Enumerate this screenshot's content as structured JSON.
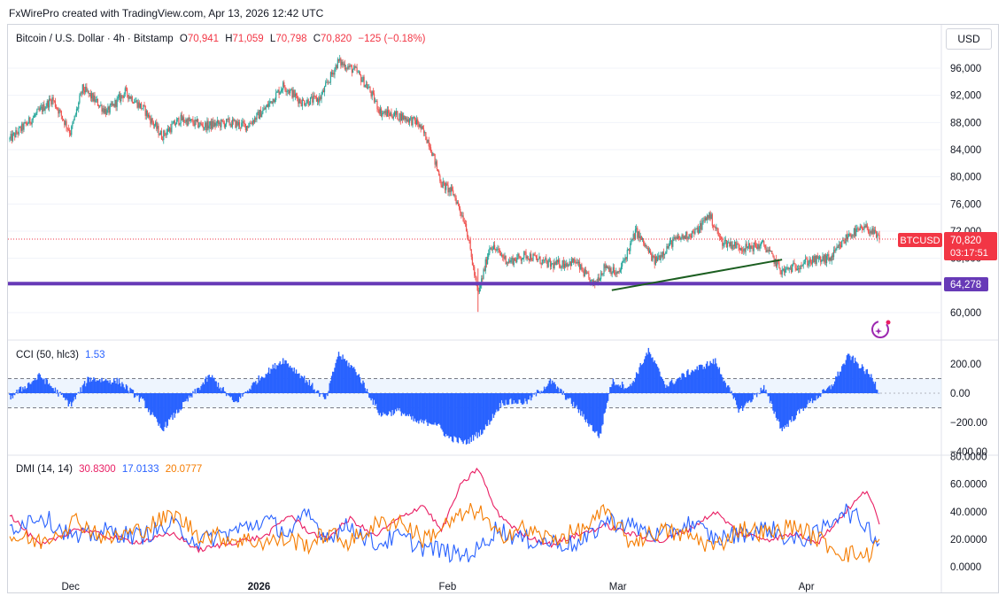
{
  "header": {
    "credit": "FxWirePro created with TradingView.com, Apr 13, 2026 12:42 UTC"
  },
  "currency_button": "USD",
  "legend": {
    "symbol": "Bitcoin / U.S. Dollar · 4h · Bitstamp",
    "o_label": "O",
    "o_value": "70,941",
    "h_label": "H",
    "h_value": "71,059",
    "l_label": "L",
    "l_value": "70,798",
    "c_label": "C",
    "c_value": "70,820",
    "change": "−125 (−0.18%)"
  },
  "price_tags": {
    "symbol_tag": "BTCUSD",
    "last_price": "70,820",
    "countdown": "03:17:51",
    "level_line": "64,278"
  },
  "cci_legend": {
    "name": "CCI (50, hlc3)",
    "value": "1.53"
  },
  "dmi_legend": {
    "name": "DMI (14, 14)",
    "adx": "30.8300",
    "plus_di": "17.0133",
    "minus_di": "20.0777"
  },
  "colors": {
    "up": "#26a69a",
    "down": "#ef5350",
    "level": "#673ab7",
    "trend": "#1b5e20",
    "cci": "#2962ff",
    "adx": "#e91e63",
    "plus_di": "#2962ff",
    "minus_di": "#f57c00",
    "price_tag": "#f23645"
  },
  "chart_data": [
    {
      "type": "candlestick",
      "title": "Bitcoin / U.S. Dollar · 4h · Bitstamp",
      "x_ticks": [
        "Dec",
        "2026",
        "Feb",
        "Mar",
        "Apr"
      ],
      "y_ticks": [
        "96,000",
        "92,000",
        "88,000",
        "84,000",
        "80,000",
        "76,000",
        "72,000",
        "68,000",
        "64,000",
        "60,000"
      ],
      "ylim": [
        58000,
        98000
      ],
      "anchors": [
        {
          "x": "Nov 21",
          "y": 85500
        },
        {
          "x": "Nov 24",
          "y": 88000
        },
        {
          "x": "Nov 28",
          "y": 91500
        },
        {
          "x": "Dec 1",
          "y": 86500
        },
        {
          "x": "Dec 3",
          "y": 93000
        },
        {
          "x": "Dec 7",
          "y": 89500
        },
        {
          "x": "Dec 10",
          "y": 92500
        },
        {
          "x": "Dec 13",
          "y": 90000
        },
        {
          "x": "Dec 16",
          "y": 86000
        },
        {
          "x": "Dec 19",
          "y": 88500
        },
        {
          "x": "Dec 23",
          "y": 87500
        },
        {
          "x": "Dec 27",
          "y": 88000
        },
        {
          "x": "Dec 30",
          "y": 87500
        },
        {
          "x": "Jan 2",
          "y": 90000
        },
        {
          "x": "Jan 5",
          "y": 93500
        },
        {
          "x": "Jan 8",
          "y": 91000
        },
        {
          "x": "Jan 11",
          "y": 91500
        },
        {
          "x": "Jan 14",
          "y": 97000
        },
        {
          "x": "Jan 17",
          "y": 95500
        },
        {
          "x": "Jan 19",
          "y": 93000
        },
        {
          "x": "Jan 21",
          "y": 89500
        },
        {
          "x": "Jan 24",
          "y": 89000
        },
        {
          "x": "Jan 27",
          "y": 88000
        },
        {
          "x": "Jan 29",
          "y": 85000
        },
        {
          "x": "Jan 31",
          "y": 79000
        },
        {
          "x": "Feb 2",
          "y": 77500
        },
        {
          "x": "Feb 4",
          "y": 73000
        },
        {
          "x": "Feb 6",
          "y": 62500
        },
        {
          "x": "Feb 8",
          "y": 70000
        },
        {
          "x": "Feb 11",
          "y": 67500
        },
        {
          "x": "Feb 14",
          "y": 68500
        },
        {
          "x": "Feb 18",
          "y": 67000
        },
        {
          "x": "Feb 22",
          "y": 67500
        },
        {
          "x": "Feb 25",
          "y": 64000
        },
        {
          "x": "Feb 27",
          "y": 67000
        },
        {
          "x": "Mar 1",
          "y": 65500
        },
        {
          "x": "Mar 4",
          "y": 72000
        },
        {
          "x": "Mar 7",
          "y": 67500
        },
        {
          "x": "Mar 10",
          "y": 70500
        },
        {
          "x": "Mar 14",
          "y": 72000
        },
        {
          "x": "Mar 16",
          "y": 74500
        },
        {
          "x": "Mar 18",
          "y": 70500
        },
        {
          "x": "Mar 22",
          "y": 69500
        },
        {
          "x": "Mar 25",
          "y": 70000
        },
        {
          "x": "Mar 28",
          "y": 66000
        },
        {
          "x": "Apr 1",
          "y": 67500
        },
        {
          "x": "Apr 5",
          "y": 68000
        },
        {
          "x": "Apr 8",
          "y": 71500
        },
        {
          "x": "Apr 11",
          "y": 72500
        },
        {
          "x": "Apr 13",
          "y": 70820
        }
      ],
      "last_price": 70820,
      "horizontal_level": 64278,
      "trendline": [
        {
          "x": "Feb 28",
          "y": 63300
        },
        {
          "x": "Mar 28",
          "y": 67800
        }
      ]
    },
    {
      "type": "histogram",
      "title": "CCI (50, hlc3)",
      "y_ticks": [
        "200.00",
        "0.00",
        "−200.00",
        "−400.00"
      ],
      "ylim": [
        -420,
        260
      ],
      "bands": [
        100,
        -100
      ],
      "anchors": [
        {
          "x": "Nov 21",
          "y": -30
        },
        {
          "x": "Nov 26",
          "y": 120
        },
        {
          "x": "Dec 1",
          "y": -80
        },
        {
          "x": "Dec 4",
          "y": 100
        },
        {
          "x": "Dec 9",
          "y": 80
        },
        {
          "x": "Dec 13",
          "y": -60
        },
        {
          "x": "Dec 16",
          "y": -250
        },
        {
          "x": "Dec 20",
          "y": -60
        },
        {
          "x": "Dec 24",
          "y": 120
        },
        {
          "x": "Dec 28",
          "y": -70
        },
        {
          "x": "Jan 1",
          "y": 100
        },
        {
          "x": "Jan 5",
          "y": 230
        },
        {
          "x": "Jan 9",
          "y": 80
        },
        {
          "x": "Jan 12",
          "y": -50
        },
        {
          "x": "Jan 14",
          "y": 270
        },
        {
          "x": "Jan 17",
          "y": 150
        },
        {
          "x": "Jan 21",
          "y": -150
        },
        {
          "x": "Jan 24",
          "y": -120
        },
        {
          "x": "Jan 27",
          "y": -200
        },
        {
          "x": "Jan 30",
          "y": -200
        },
        {
          "x": "Feb 1",
          "y": -300
        },
        {
          "x": "Feb 4",
          "y": -340
        },
        {
          "x": "Feb 7",
          "y": -250
        },
        {
          "x": "Feb 10",
          "y": -60
        },
        {
          "x": "Feb 14",
          "y": -60
        },
        {
          "x": "Feb 18",
          "y": 80
        },
        {
          "x": "Feb 22",
          "y": -90
        },
        {
          "x": "Feb 26",
          "y": -300
        },
        {
          "x": "Feb 28",
          "y": 80
        },
        {
          "x": "Mar 3",
          "y": 40
        },
        {
          "x": "Mar 6",
          "y": 290
        },
        {
          "x": "Mar 9",
          "y": 50
        },
        {
          "x": "Mar 13",
          "y": 150
        },
        {
          "x": "Mar 17",
          "y": 220
        },
        {
          "x": "Mar 21",
          "y": -120
        },
        {
          "x": "Mar 25",
          "y": 40
        },
        {
          "x": "Mar 28",
          "y": -250
        },
        {
          "x": "Apr 1",
          "y": -80
        },
        {
          "x": "Apr 5",
          "y": 40
        },
        {
          "x": "Apr 8",
          "y": 260
        },
        {
          "x": "Apr 12",
          "y": 100
        },
        {
          "x": "Apr 13",
          "y": 1.53
        }
      ]
    },
    {
      "type": "line",
      "title": "DMI (14, 14)",
      "y_ticks": [
        "80.0000",
        "60.0000",
        "40.0000",
        "20.0000",
        "0.0000"
      ],
      "ylim": [
        0,
        82
      ],
      "series": [
        {
          "name": "ADX",
          "points": [
            {
              "x": "Nov 21",
              "y": 38
            },
            {
              "x": "Nov 26",
              "y": 15
            },
            {
              "x": "Dec 2",
              "y": 28
            },
            {
              "x": "Dec 7",
              "y": 22
            },
            {
              "x": "Dec 12",
              "y": 18
            },
            {
              "x": "Dec 18",
              "y": 24
            },
            {
              "x": "Dec 22",
              "y": 12
            },
            {
              "x": "Dec 28",
              "y": 18
            },
            {
              "x": "Jan 2",
              "y": 22
            },
            {
              "x": "Jan 6",
              "y": 38
            },
            {
              "x": "Jan 9",
              "y": 26
            },
            {
              "x": "Jan 12",
              "y": 20
            },
            {
              "x": "Jan 16",
              "y": 35
            },
            {
              "x": "Jan 20",
              "y": 22
            },
            {
              "x": "Jan 24",
              "y": 35
            },
            {
              "x": "Jan 28",
              "y": 45
            },
            {
              "x": "Jan 31",
              "y": 26
            },
            {
              "x": "Feb 3",
              "y": 58
            },
            {
              "x": "Feb 6",
              "y": 72
            },
            {
              "x": "Feb 9",
              "y": 40
            },
            {
              "x": "Feb 13",
              "y": 24
            },
            {
              "x": "Feb 18",
              "y": 16
            },
            {
              "x": "Feb 23",
              "y": 24
            },
            {
              "x": "Feb 27",
              "y": 30
            },
            {
              "x": "Mar 3",
              "y": 24
            },
            {
              "x": "Mar 8",
              "y": 18
            },
            {
              "x": "Mar 13",
              "y": 28
            },
            {
              "x": "Mar 17",
              "y": 40
            },
            {
              "x": "Mar 21",
              "y": 24
            },
            {
              "x": "Mar 26",
              "y": 20
            },
            {
              "x": "Mar 30",
              "y": 24
            },
            {
              "x": "Apr 3",
              "y": 18
            },
            {
              "x": "Apr 7",
              "y": 38
            },
            {
              "x": "Apr 11",
              "y": 56
            },
            {
              "x": "Apr 13",
              "y": 30.83
            }
          ]
        },
        {
          "name": "+DI",
          "points": [
            {
              "x": "Nov 21",
              "y": 28
            },
            {
              "x": "Nov 26",
              "y": 38
            },
            {
              "x": "Dec 2",
              "y": 20
            },
            {
              "x": "Dec 7",
              "y": 26
            },
            {
              "x": "Dec 12",
              "y": 22
            },
            {
              "x": "Dec 18",
              "y": 30
            },
            {
              "x": "Dec 22",
              "y": 18
            },
            {
              "x": "Dec 28",
              "y": 26
            },
            {
              "x": "Jan 2",
              "y": 34
            },
            {
              "x": "Jan 6",
              "y": 24
            },
            {
              "x": "Jan 9",
              "y": 38
            },
            {
              "x": "Jan 12",
              "y": 22
            },
            {
              "x": "Jan 16",
              "y": 30
            },
            {
              "x": "Jan 20",
              "y": 16
            },
            {
              "x": "Jan 24",
              "y": 22
            },
            {
              "x": "Jan 28",
              "y": 14
            },
            {
              "x": "Jan 31",
              "y": 12
            },
            {
              "x": "Feb 3",
              "y": 8
            },
            {
              "x": "Feb 6",
              "y": 12
            },
            {
              "x": "Feb 9",
              "y": 28
            },
            {
              "x": "Feb 13",
              "y": 20
            },
            {
              "x": "Feb 18",
              "y": 18
            },
            {
              "x": "Feb 23",
              "y": 16
            },
            {
              "x": "Feb 27",
              "y": 34
            },
            {
              "x": "Mar 3",
              "y": 30
            },
            {
              "x": "Mar 8",
              "y": 22
            },
            {
              "x": "Mar 13",
              "y": 32
            },
            {
              "x": "Mar 17",
              "y": 20
            },
            {
              "x": "Mar 21",
              "y": 24
            },
            {
              "x": "Mar 26",
              "y": 28
            },
            {
              "x": "Mar 30",
              "y": 18
            },
            {
              "x": "Apr 3",
              "y": 24
            },
            {
              "x": "Apr 7",
              "y": 42
            },
            {
              "x": "Apr 11",
              "y": 30
            },
            {
              "x": "Apr 13",
              "y": 17.01
            }
          ]
        },
        {
          "name": "−DI",
          "points": [
            {
              "x": "Nov 21",
              "y": 22
            },
            {
              "x": "Nov 26",
              "y": 18
            },
            {
              "x": "Dec 2",
              "y": 34
            },
            {
              "x": "Dec 7",
              "y": 20
            },
            {
              "x": "Dec 12",
              "y": 26
            },
            {
              "x": "Dec 18",
              "y": 38
            },
            {
              "x": "Dec 22",
              "y": 24
            },
            {
              "x": "Dec 28",
              "y": 20
            },
            {
              "x": "Jan 2",
              "y": 18
            },
            {
              "x": "Jan 6",
              "y": 20
            },
            {
              "x": "Jan 9",
              "y": 16
            },
            {
              "x": "Jan 12",
              "y": 24
            },
            {
              "x": "Jan 16",
              "y": 18
            },
            {
              "x": "Jan 20",
              "y": 30
            },
            {
              "x": "Jan 24",
              "y": 34
            },
            {
              "x": "Jan 28",
              "y": 20
            },
            {
              "x": "Jan 31",
              "y": 28
            },
            {
              "x": "Feb 3",
              "y": 36
            },
            {
              "x": "Feb 6",
              "y": 42
            },
            {
              "x": "Feb 9",
              "y": 22
            },
            {
              "x": "Feb 13",
              "y": 28
            },
            {
              "x": "Feb 18",
              "y": 20
            },
            {
              "x": "Feb 23",
              "y": 26
            },
            {
              "x": "Feb 27",
              "y": 40
            },
            {
              "x": "Mar 3",
              "y": 18
            },
            {
              "x": "Mar 8",
              "y": 26
            },
            {
              "x": "Mar 13",
              "y": 22
            },
            {
              "x": "Mar 17",
              "y": 14
            },
            {
              "x": "Mar 21",
              "y": 28
            },
            {
              "x": "Mar 26",
              "y": 24
            },
            {
              "x": "Mar 30",
              "y": 30
            },
            {
              "x": "Apr 3",
              "y": 20
            },
            {
              "x": "Apr 7",
              "y": 10
            },
            {
              "x": "Apr 11",
              "y": 8
            },
            {
              "x": "Apr 13",
              "y": 20.08
            }
          ]
        }
      ]
    }
  ]
}
